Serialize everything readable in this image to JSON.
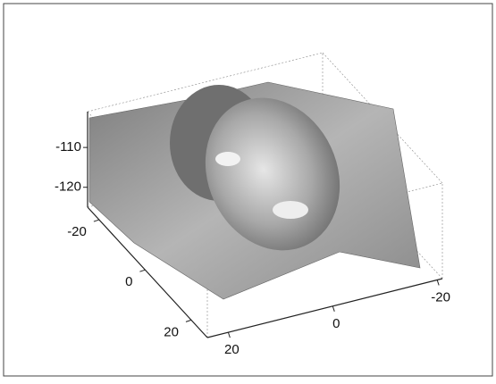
{
  "chart_data": {
    "type": "surface3d",
    "xticks": [
      -20,
      0,
      20
    ],
    "xlim": [
      -25,
      27
    ],
    "yticks": [
      20,
      0,
      -20
    ],
    "ylim": [
      24,
      -21
    ],
    "zticks": [
      -110,
      -120
    ],
    "zlim": [
      -125,
      -101
    ],
    "color": "#9a9a9a"
  }
}
